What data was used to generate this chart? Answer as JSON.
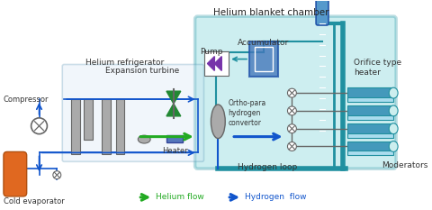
{
  "bg_color": "#ffffff",
  "hbc_color": "#5bc8d0",
  "hbc_edge": "#2090a0",
  "ref_color": "#c8dff0",
  "ref_edge": "#4488aa",
  "gray": "#aaaaaa",
  "dark_gray": "#666666",
  "orange": "#e06820",
  "green": "#22aa22",
  "blue": "#1155cc",
  "purple": "#7733aa",
  "lblue": "#4499bb",
  "lblue2": "#66bbcc",
  "teal_line": "#2090a0",
  "labels": {
    "title": "Helium blanket chamber",
    "helium_refrig": "Helium refrigerator",
    "expansion": "Expansion turbine",
    "compressor": "Compressor",
    "cold_evap": "Cold evaporator",
    "heater": "Heater",
    "pump": "Pump",
    "accumulator": "Accumulator",
    "ortho": "Ortho-para\nhydrogen\nconvertor",
    "hydrogen_loop": "Hydrogen loop",
    "orifice1": "Orifice type",
    "orifice2": "heater",
    "moderators": "Moderators",
    "helium_flow": "Helium flow",
    "hydrogen_flow": "Hydrogen  flow"
  }
}
